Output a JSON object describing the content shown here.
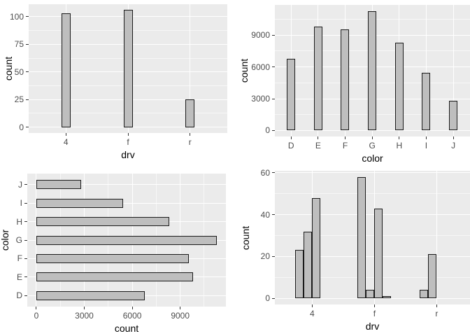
{
  "figure": {
    "background": "#ffffff",
    "panel_background": "#ebebeb",
    "grid_major_color": "#ffffff",
    "grid_minor_color": "#ffffff",
    "bar_fill": "#bebebe",
    "bar_stroke": "#1a1a1a",
    "tick_mark_color": "#333333",
    "tick_label_color": "#4d4d4d",
    "axis_title_color": "#000000"
  },
  "chart_data": [
    {
      "id": "drv-count",
      "type": "bar",
      "orientation": "vertical",
      "title": "",
      "xlabel": "drv",
      "ylabel": "count",
      "categories": [
        "4",
        "f",
        "r"
      ],
      "values": [
        103,
        106,
        25
      ],
      "value_ticks": [
        0,
        25,
        50,
        75,
        100
      ],
      "ylim": [
        0,
        111
      ],
      "grid": "on",
      "legend": "none"
    },
    {
      "id": "color-count",
      "type": "bar",
      "orientation": "vertical",
      "title": "",
      "xlabel": "color",
      "ylabel": "count",
      "categories": [
        "D",
        "E",
        "F",
        "G",
        "H",
        "I",
        "J"
      ],
      "values": [
        6775,
        9797,
        9542,
        11292,
        8304,
        5422,
        2808
      ],
      "value_ticks": [
        0,
        3000,
        6000,
        9000
      ],
      "ylim": [
        0,
        11857
      ],
      "grid": "on",
      "legend": "none"
    },
    {
      "id": "color-count-horizontal",
      "type": "bar",
      "orientation": "horizontal",
      "title": "",
      "xlabel": "count",
      "ylabel": "color",
      "categories": [
        "J",
        "I",
        "H",
        "G",
        "F",
        "E",
        "D"
      ],
      "values": [
        2808,
        5422,
        8304,
        11292,
        9542,
        9797,
        6775
      ],
      "value_ticks": [
        0,
        3000,
        6000,
        9000
      ],
      "xlim": [
        0,
        11857
      ],
      "grid": "on",
      "legend": "none"
    },
    {
      "id": "drv-cyl-count",
      "type": "bar",
      "orientation": "vertical",
      "dodged": true,
      "title": "",
      "xlabel": "drv",
      "ylabel": "count",
      "categories": [
        "4",
        "f",
        "r"
      ],
      "series_per_category": [
        [
          23,
          32,
          48
        ],
        [
          58,
          4,
          43,
          1
        ],
        [
          4,
          21
        ]
      ],
      "value_ticks": [
        0,
        20,
        40,
        60
      ],
      "ylim": [
        0,
        61
      ],
      "grid": "on",
      "legend": "none"
    }
  ]
}
